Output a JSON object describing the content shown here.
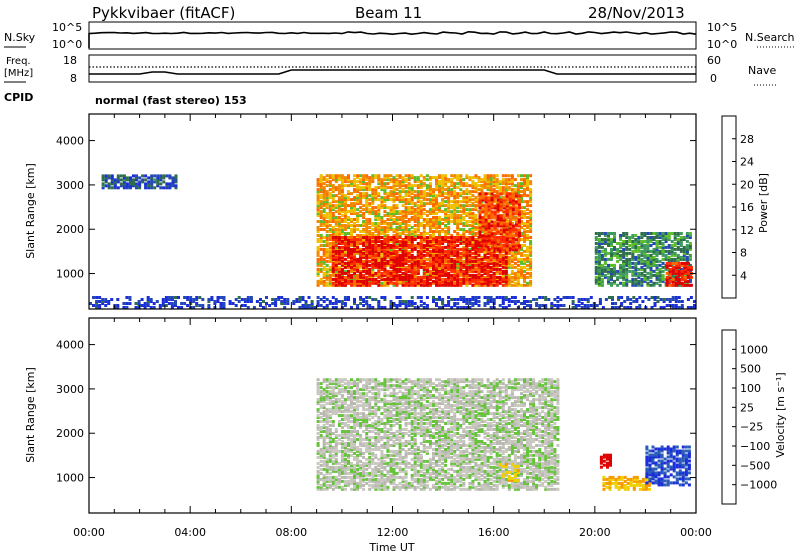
{
  "header": {
    "station": "Pykkvibaer (fitACF)",
    "beam": "Beam 11",
    "date": "28/Nov/2013"
  },
  "strip_nsky": {
    "left_label": "N.Sky",
    "left_ticks": [
      "10^5",
      "10^0"
    ],
    "right_ticks": [
      "10^5",
      "10^0"
    ],
    "right_label": "N.Search"
  },
  "strip_freq": {
    "left_label_1": "Freq.",
    "left_label_2": "[MHz]",
    "left_ticks": [
      "18",
      "8"
    ],
    "right_ticks": [
      "60",
      "0"
    ],
    "right_label": "Nave"
  },
  "cpid": {
    "label": "CPID",
    "text": "normal (fast stereo) 153"
  },
  "panels": {
    "ylabel": "Slant Range [km]",
    "yticks": [
      "4000",
      "3000",
      "2000",
      "1000"
    ],
    "xlabel": "Time UT",
    "xticks": [
      "00:00",
      "04:00",
      "08:00",
      "12:00",
      "16:00",
      "20:00",
      "00:00"
    ]
  },
  "colorbars": {
    "power": {
      "label": "Power [dB]",
      "ticks": [
        "28",
        "24",
        "20",
        "16",
        "12",
        "8",
        "4"
      ],
      "colors": [
        "#1a2fd8",
        "#2548b8",
        "#2f6e4a",
        "#3e9a5e",
        "#5bbd2a",
        "#f0c000",
        "#f08a00",
        "#ff6a00",
        "#ff2d00",
        "#e00000"
      ]
    },
    "velocity": {
      "label": "Velocity [m s⁻¹]",
      "ticks": [
        "1000",
        "500",
        "100",
        "25",
        "−25",
        "−100",
        "−500",
        "−1000"
      ],
      "colors": [
        "#1a2fd8",
        "#2a5cb8",
        "#2f7a55",
        "#3f9b62",
        "#66c43a",
        "#b8b8b0",
        "#f0d000",
        "#f59a00",
        "#ff5a00",
        "#e00000"
      ]
    }
  },
  "chart_data": [
    {
      "type": "heatmap",
      "title": "Power",
      "xlabel": "Time UT",
      "ylabel": "Slant Range [km]",
      "xlim": [
        0,
        24
      ],
      "ylim": [
        200,
        4600
      ],
      "value_label": "Power [dB]",
      "value_range": [
        4,
        30
      ],
      "regions": [
        {
          "t0": 0.5,
          "t1": 3.5,
          "r0": 2900,
          "r1": 3200,
          "value": 8
        },
        {
          "t0": 0,
          "t1": 24,
          "r0": 200,
          "r1": 450,
          "value": 6
        },
        {
          "t0": 9.0,
          "t1": 17.5,
          "r0": 700,
          "r1": 3200,
          "value": 20
        },
        {
          "t0": 9.6,
          "t1": 16.5,
          "r0": 700,
          "r1": 1800,
          "value": 28
        },
        {
          "t0": 15.4,
          "t1": 17.0,
          "r0": 1500,
          "r1": 2800,
          "value": 26
        },
        {
          "t0": 20.0,
          "t1": 23.8,
          "r0": 700,
          "r1": 1900,
          "value": 12
        },
        {
          "t0": 22.8,
          "t1": 23.8,
          "r0": 700,
          "r1": 1200,
          "value": 28
        }
      ]
    },
    {
      "type": "heatmap",
      "title": "Velocity",
      "xlabel": "Time UT",
      "ylabel": "Slant Range [km]",
      "xlim": [
        0,
        24
      ],
      "ylim": [
        200,
        4600
      ],
      "value_label": "Velocity [m s⁻¹]",
      "value_range": [
        -1000,
        1000
      ],
      "regions": [
        {
          "t0": 9.0,
          "t1": 18.5,
          "r0": 700,
          "r1": 3200,
          "value": 0
        },
        {
          "t0": 16.2,
          "t1": 17.0,
          "r0": 900,
          "r1": 1300,
          "value": 300
        },
        {
          "t0": 20.3,
          "t1": 22.2,
          "r0": 700,
          "r1": 1000,
          "value": 400
        },
        {
          "t0": 20.2,
          "t1": 20.6,
          "r0": 1200,
          "r1": 1500,
          "value": 1000
        },
        {
          "t0": 22.0,
          "t1": 23.8,
          "r0": 800,
          "r1": 1700,
          "value": -800
        }
      ]
    }
  ]
}
